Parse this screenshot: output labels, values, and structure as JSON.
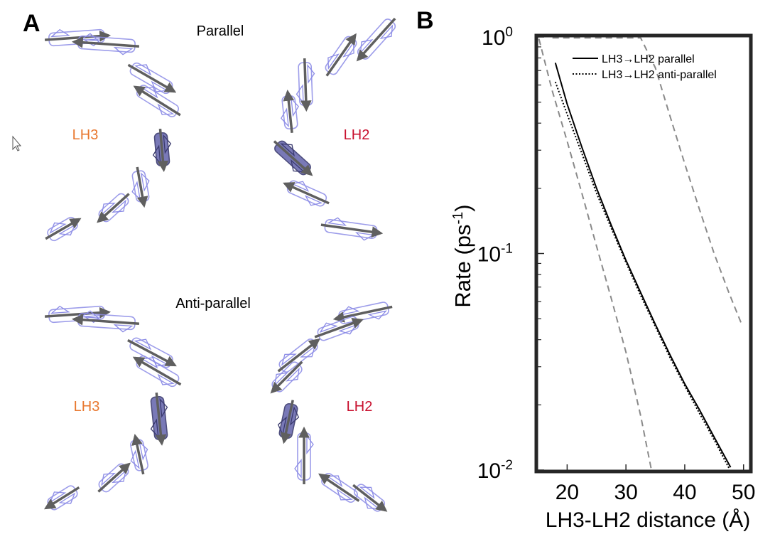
{
  "panel_a": {
    "label": "A",
    "top_title": "Parallel",
    "bottom_title": "Anti-parallel",
    "top_left_ring": "LH3",
    "top_right_ring": "LH2",
    "bottom_left_ring": "LH3",
    "bottom_right_ring": "LH2",
    "colors": {
      "lh3": "#e8772e",
      "lh2": "#c8102e",
      "pigment": "#8c8ce6",
      "arrow": "#5f5f5f",
      "dark_pigment": "#3a3a6e"
    }
  },
  "panel_b": {
    "label": "B"
  },
  "chart_data": {
    "type": "line",
    "xlabel": "LH3-LH2 distance (Å)",
    "ylabel_main": "Rate (ps",
    "ylabel_sup": "-1",
    "ylabel_close": ")",
    "x_ticks": [
      "20",
      "30",
      "40",
      "50"
    ],
    "y_ticks": [
      {
        "value": 1,
        "base": "10",
        "exp": "0"
      },
      {
        "value": 0.1,
        "base": "10",
        "exp": "-1"
      },
      {
        "value": 0.01,
        "base": "10",
        "exp": "-2"
      }
    ],
    "xlim": [
      15,
      51
    ],
    "ylim": [
      0.01,
      1
    ],
    "y_scale": "log",
    "legend_position": "top-right",
    "series": [
      {
        "name": "LH3→LH2 parallel",
        "style": "solid",
        "x": [
          18,
          20,
          22.5,
          25,
          27.5,
          30,
          32.5,
          35,
          37.5,
          40,
          42.5,
          45,
          47.8
        ],
        "y": [
          0.76,
          0.49,
          0.31,
          0.2,
          0.135,
          0.093,
          0.066,
          0.047,
          0.034,
          0.025,
          0.019,
          0.0142,
          0.0103
        ]
      },
      {
        "name": "LH3→LH2 anti-parallel",
        "style": "dotted",
        "x": [
          18,
          20,
          22.5,
          25,
          27.5,
          30,
          32.5,
          35,
          37.5,
          40,
          42.5,
          45,
          47.6
        ],
        "y": [
          0.62,
          0.44,
          0.29,
          0.19,
          0.131,
          0.091,
          0.064,
          0.046,
          0.033,
          0.0245,
          0.0183,
          0.0138,
          0.0101
        ]
      },
      {
        "style": "dashed",
        "x": [
          15.2,
          17.5,
          20,
          22.5,
          25,
          27.5,
          30,
          32.5,
          34.3
        ],
        "y": [
          0.98,
          0.56,
          0.33,
          0.19,
          0.108,
          0.062,
          0.035,
          0.0178,
          0.0101
        ]
      },
      {
        "style": "dashed",
        "x": [
          17.5,
          20,
          22.5,
          25,
          27.5,
          30,
          32.5,
          35,
          37.5,
          40,
          42.5,
          45,
          47.5,
          49.7
        ],
        "y": [
          0.99,
          0.99,
          0.99,
          0.99,
          0.99,
          0.99,
          0.99,
          0.72,
          0.43,
          0.26,
          0.16,
          0.1,
          0.066,
          0.047
        ]
      }
    ]
  }
}
